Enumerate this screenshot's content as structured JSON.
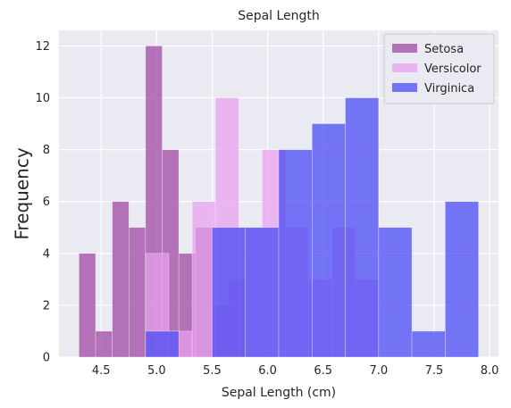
{
  "chart_data": {
    "type": "histogram",
    "title": "Sepal Length",
    "xlabel": "Sepal Length (cm)",
    "ylabel": "Frequency",
    "xlim": [
      4.12,
      8.08
    ],
    "ylim": [
      0,
      12.6
    ],
    "xticks": [
      4.5,
      5.0,
      5.5,
      6.0,
      6.5,
      7.0,
      7.5,
      8.0
    ],
    "xtick_labels": [
      "4.5",
      "5.0",
      "5.5",
      "6.0",
      "6.5",
      "7.0",
      "7.5",
      "8.0"
    ],
    "yticks": [
      0,
      2,
      4,
      6,
      8,
      10,
      12
    ],
    "ytick_labels": [
      "0",
      "2",
      "4",
      "6",
      "8",
      "10",
      "12"
    ],
    "grid": true,
    "legend_position": "top-right",
    "series": [
      {
        "name": "Setosa",
        "color": "#a04aa3",
        "alpha": 0.75,
        "bins": [
          {
            "x0": 4.3,
            "x1": 4.45,
            "count": 4
          },
          {
            "x0": 4.45,
            "x1": 4.6,
            "count": 1
          },
          {
            "x0": 4.6,
            "x1": 4.75,
            "count": 6
          },
          {
            "x0": 4.75,
            "x1": 4.9,
            "count": 5
          },
          {
            "x0": 4.9,
            "x1": 5.05,
            "count": 12
          },
          {
            "x0": 5.05,
            "x1": 5.2,
            "count": 8
          },
          {
            "x0": 5.2,
            "x1": 5.35,
            "count": 4
          },
          {
            "x0": 5.35,
            "x1": 5.5,
            "count": 5
          },
          {
            "x0": 5.5,
            "x1": 5.65,
            "count": 2
          },
          {
            "x0": 5.65,
            "x1": 5.8,
            "count": 3
          }
        ]
      },
      {
        "name": "Versicolor",
        "color": "#e8a2ee",
        "alpha": 0.75,
        "bins": [
          {
            "x0": 4.9,
            "x1": 5.11,
            "count": 4
          },
          {
            "x0": 5.11,
            "x1": 5.32,
            "count": 1
          },
          {
            "x0": 5.32,
            "x1": 5.53,
            "count": 6
          },
          {
            "x0": 5.53,
            "x1": 5.74,
            "count": 10
          },
          {
            "x0": 5.74,
            "x1": 5.95,
            "count": 5
          },
          {
            "x0": 5.95,
            "x1": 6.16,
            "count": 8
          },
          {
            "x0": 6.16,
            "x1": 6.37,
            "count": 5
          },
          {
            "x0": 6.37,
            "x1": 6.58,
            "count": 3
          },
          {
            "x0": 6.58,
            "x1": 6.79,
            "count": 5
          },
          {
            "x0": 6.79,
            "x1": 7.0,
            "count": 3
          }
        ]
      },
      {
        "name": "Virginica",
        "color": "#4b4bf5",
        "alpha": 0.75,
        "bins": [
          {
            "x0": 4.9,
            "x1": 5.2,
            "count": 1
          },
          {
            "x0": 5.2,
            "x1": 5.5,
            "count": 0
          },
          {
            "x0": 5.5,
            "x1": 5.8,
            "count": 5
          },
          {
            "x0": 5.8,
            "x1": 6.1,
            "count": 5
          },
          {
            "x0": 6.1,
            "x1": 6.4,
            "count": 8
          },
          {
            "x0": 6.4,
            "x1": 6.7,
            "count": 9
          },
          {
            "x0": 6.7,
            "x1": 7.0,
            "count": 10
          },
          {
            "x0": 7.0,
            "x1": 7.3,
            "count": 5
          },
          {
            "x0": 7.3,
            "x1": 7.6,
            "count": 1
          },
          {
            "x0": 7.6,
            "x1": 7.9,
            "count": 6
          }
        ]
      }
    ]
  }
}
